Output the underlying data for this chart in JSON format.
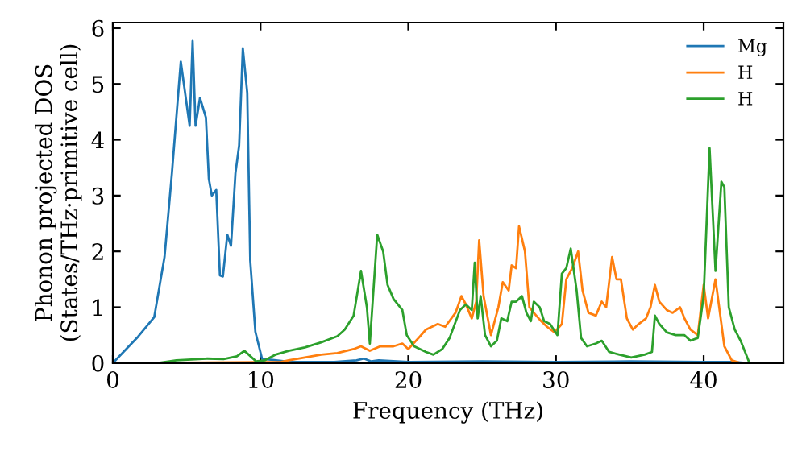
{
  "chart_data": {
    "type": "line",
    "xlabel": "Frequency (THz)",
    "ylabel": "Phonon projected DOS\n(States/THz·primitive cell)",
    "xlim": [
      0,
      45.4
    ],
    "ylim": [
      0,
      6.1
    ],
    "xticks": [
      0,
      10,
      20,
      30,
      40
    ],
    "yticks": [
      0,
      1,
      2,
      3,
      4,
      5,
      6
    ],
    "legend": "top right",
    "grid": false,
    "series": [
      {
        "name": "Mg",
        "color": "#1f77b4",
        "x": [
          0,
          1.7,
          2.8,
          3.5,
          4.0,
          4.6,
          5.2,
          5.4,
          5.6,
          5.9,
          6.3,
          6.5,
          6.7,
          7.0,
          7.25,
          7.45,
          7.75,
          8.0,
          8.3,
          8.55,
          8.8,
          9.1,
          9.3,
          9.65,
          10.1,
          12,
          15,
          16.5,
          17,
          17.5,
          18,
          20,
          25,
          30,
          35,
          40,
          42,
          43,
          45.4
        ],
        "values": [
          0,
          0.47,
          0.82,
          1.9,
          3.4,
          5.4,
          4.25,
          5.77,
          4.25,
          4.75,
          4.4,
          3.3,
          3.0,
          3.1,
          1.57,
          1.55,
          2.3,
          2.1,
          3.4,
          3.9,
          5.64,
          4.84,
          1.84,
          0.56,
          0.08,
          0.02,
          0.02,
          0.05,
          0.08,
          0.03,
          0.05,
          0.02,
          0.03,
          0.02,
          0.03,
          0.02,
          0.02,
          0,
          0
        ]
      },
      {
        "name": "H",
        "color": "#ff7f0e",
        "x": [
          0,
          11.4,
          11.9,
          13,
          14.1,
          15.2,
          16.3,
          16.8,
          17.4,
          18.1,
          19,
          19.6,
          20,
          20.7,
          21.2,
          22,
          22.5,
          23.2,
          23.6,
          23.9,
          24.3,
          24.6,
          24.8,
          25.1,
          25.6,
          26.1,
          26.4,
          26.8,
          27,
          27.3,
          27.5,
          27.9,
          28.2,
          28.5,
          29,
          29.4,
          29.9,
          30.4,
          30.7,
          31.1,
          31.5,
          31.8,
          32.2,
          32.7,
          33.1,
          33.4,
          33.8,
          34.1,
          34.4,
          34.8,
          35.2,
          35.6,
          36.1,
          36.4,
          36.7,
          37,
          37.5,
          37.9,
          38.4,
          38.7,
          39.1,
          39.6,
          40,
          40.3,
          40.8,
          41.1,
          41.4,
          41.9,
          42.5,
          45.4
        ],
        "values": [
          0,
          0.02,
          0.05,
          0.1,
          0.15,
          0.18,
          0.25,
          0.3,
          0.22,
          0.3,
          0.3,
          0.35,
          0.25,
          0.45,
          0.6,
          0.7,
          0.65,
          0.9,
          1.2,
          1.05,
          0.8,
          1.1,
          2.2,
          1.2,
          0.5,
          1.0,
          1.45,
          1.3,
          1.75,
          1.7,
          2.45,
          2.0,
          1.0,
          0.9,
          0.75,
          0.65,
          0.55,
          0.7,
          1.5,
          1.7,
          2.0,
          1.3,
          0.9,
          0.85,
          1.1,
          1.0,
          1.9,
          1.5,
          1.5,
          0.8,
          0.6,
          0.7,
          0.8,
          1.0,
          1.4,
          1.1,
          0.95,
          0.9,
          1.0,
          0.8,
          0.6,
          0.5,
          1.4,
          0.8,
          1.5,
          0.9,
          0.3,
          0.05,
          0,
          0
        ]
      },
      {
        "name": "H",
        "color": "#2ca02c",
        "x": [
          0,
          3,
          4.3,
          6.4,
          7.5,
          8.4,
          8.9,
          9.2,
          9.7,
          10.3,
          11,
          11.9,
          13,
          14.1,
          15.2,
          15.7,
          16.3,
          16.8,
          17.2,
          17.4,
          17.9,
          18.3,
          18.6,
          19,
          19.6,
          19.9,
          20.4,
          21.2,
          21.7,
          22.3,
          22.8,
          23.5,
          23.9,
          24.3,
          24.5,
          24.7,
          24.9,
          25.2,
          25.6,
          26,
          26.3,
          26.7,
          27,
          27.3,
          27.7,
          28,
          28.3,
          28.5,
          28.9,
          29.2,
          29.6,
          30.1,
          30.4,
          30.7,
          31,
          31.4,
          31.7,
          32.1,
          32.7,
          33.1,
          33.6,
          34.3,
          35.1,
          36,
          36.5,
          36.7,
          37,
          37.5,
          38.1,
          38.7,
          39.1,
          39.6,
          40,
          40.4,
          40.8,
          41.2,
          41.4,
          41.7,
          42.1,
          42.5,
          43.1,
          45.4
        ],
        "values": [
          0,
          0,
          0.05,
          0.08,
          0.07,
          0.12,
          0.22,
          0.15,
          0.03,
          0.05,
          0.15,
          0.22,
          0.28,
          0.37,
          0.48,
          0.6,
          0.85,
          1.65,
          1.0,
          0.35,
          2.3,
          2.0,
          1.4,
          1.15,
          0.95,
          0.5,
          0.3,
          0.2,
          0.15,
          0.25,
          0.45,
          0.95,
          1.05,
          0.95,
          1.8,
          0.8,
          1.2,
          0.5,
          0.3,
          0.4,
          0.8,
          0.75,
          1.1,
          1.1,
          1.2,
          0.9,
          0.75,
          1.1,
          1.0,
          0.75,
          0.7,
          0.5,
          1.6,
          1.7,
          2.05,
          1.3,
          0.45,
          0.3,
          0.35,
          0.4,
          0.2,
          0.15,
          0.1,
          0.15,
          0.2,
          0.85,
          0.7,
          0.55,
          0.5,
          0.5,
          0.4,
          0.45,
          1.2,
          3.85,
          1.65,
          3.25,
          3.15,
          1.0,
          0.6,
          0.4,
          0,
          0
        ]
      }
    ]
  }
}
